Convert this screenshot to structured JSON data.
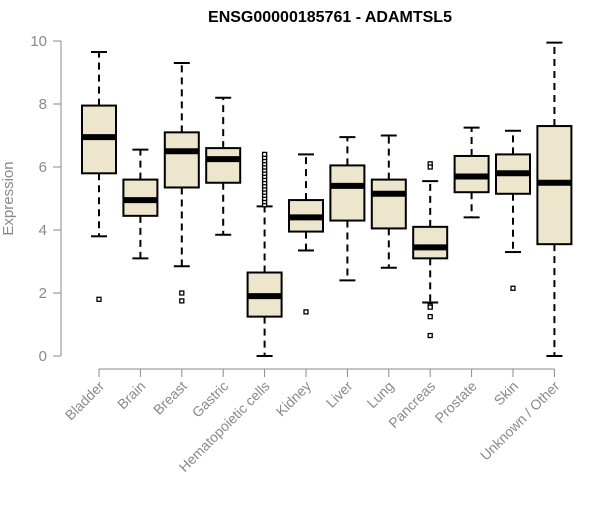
{
  "chart_data": {
    "type": "box",
    "title": "ENSG00000185761 - ADAMTSL5",
    "ylabel": "Expression",
    "xlabel": "",
    "ylim": [
      0,
      10
    ],
    "yticks": [
      0,
      2,
      4,
      6,
      8,
      10
    ],
    "grid": false,
    "box_fill": "#ede6cc",
    "box_stroke": "#000000",
    "categories": [
      "Bladder",
      "Brain",
      "Breast",
      "Gastric",
      "Hematopoietic cells",
      "Kidney",
      "Liver",
      "Lung",
      "Pancreas",
      "Prostate",
      "Skin",
      "Unknown / Other"
    ],
    "boxes": [
      {
        "min": 3.8,
        "q1": 5.8,
        "median": 6.95,
        "q3": 7.95,
        "max": 9.65,
        "outliers": [
          1.8
        ]
      },
      {
        "min": 3.1,
        "q1": 4.45,
        "median": 4.95,
        "q3": 5.6,
        "max": 6.55,
        "outliers": []
      },
      {
        "min": 2.85,
        "q1": 5.35,
        "median": 6.5,
        "q3": 7.1,
        "max": 9.3,
        "outliers": [
          2.0,
          1.75
        ]
      },
      {
        "min": 3.85,
        "q1": 5.5,
        "median": 6.25,
        "q3": 6.6,
        "max": 8.2,
        "outliers": []
      },
      {
        "min": 0.0,
        "q1": 1.25,
        "median": 1.9,
        "q3": 2.65,
        "max": 4.75,
        "outliers": [
          4.8,
          4.9,
          5.0,
          5.1,
          5.2,
          5.3,
          5.4,
          5.5,
          5.6,
          5.7,
          5.8,
          5.9,
          6.0,
          6.1,
          6.2,
          6.3,
          6.4
        ]
      },
      {
        "min": 3.35,
        "q1": 3.95,
        "median": 4.4,
        "q3": 4.95,
        "max": 6.4,
        "outliers": [
          1.4
        ]
      },
      {
        "min": 2.4,
        "q1": 4.3,
        "median": 5.4,
        "q3": 6.05,
        "max": 6.95,
        "outliers": []
      },
      {
        "min": 2.8,
        "q1": 4.05,
        "median": 5.15,
        "q3": 5.6,
        "max": 7.0,
        "outliers": []
      },
      {
        "min": 1.7,
        "q1": 3.1,
        "median": 3.45,
        "q3": 4.1,
        "max": 5.55,
        "outliers": [
          6.1,
          6.0,
          1.6,
          1.55,
          1.25,
          0.65
        ]
      },
      {
        "min": 4.4,
        "q1": 5.2,
        "median": 5.7,
        "q3": 6.35,
        "max": 7.25,
        "outliers": []
      },
      {
        "min": 3.3,
        "q1": 5.15,
        "median": 5.8,
        "q3": 6.4,
        "max": 7.15,
        "outliers": [
          2.15
        ]
      },
      {
        "min": 0.0,
        "q1": 3.55,
        "median": 5.5,
        "q3": 7.3,
        "max": 9.95,
        "outliers": []
      }
    ]
  }
}
